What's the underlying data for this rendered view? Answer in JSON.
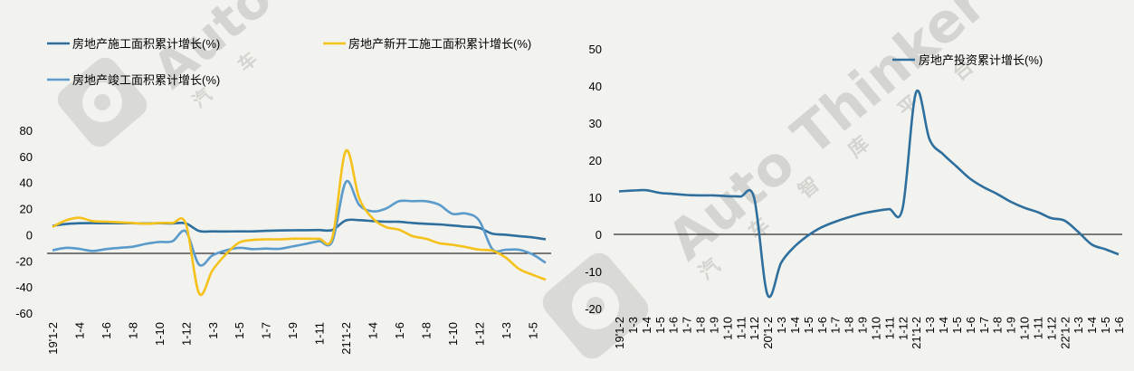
{
  "watermark": {
    "text": "Auto Thinker",
    "chars": [
      "汽",
      "车",
      "智",
      "库",
      "平",
      "台"
    ]
  },
  "chart_data": [
    {
      "type": "line",
      "title": "",
      "xlabel": "",
      "ylabel": "",
      "ylim": [
        -60,
        80
      ],
      "yticks": [
        80,
        60,
        40,
        20,
        0,
        -20,
        -40,
        -60
      ],
      "categories": [
        "19'1-2",
        "1-3",
        "1-4",
        "1-5",
        "1-6",
        "1-7",
        "1-8",
        "1-9",
        "1-10",
        "1-11",
        "1-12",
        "20'1-2",
        "1-3",
        "1-4",
        "1-5",
        "1-6",
        "1-7",
        "1-8",
        "1-9",
        "1-10",
        "1-11",
        "1-12",
        "21'1-2",
        "1-3",
        "1-4",
        "1-5",
        "1-6",
        "1-7",
        "1-8",
        "1-9",
        "1-10",
        "1-11",
        "1-12",
        "22'1-2",
        "1-3",
        "1-4",
        "1-5",
        "1-6"
      ],
      "tick_labels": [
        "19'1-2",
        "1-4",
        "1-6",
        "1-8",
        "1-10",
        "1-12",
        "1-3",
        "1-5",
        "1-7",
        "1-9",
        "1-11",
        "21'1-2",
        "1-4",
        "1-6",
        "1-8",
        "1-10",
        "1-12",
        "1-3",
        "1-5"
      ],
      "tick_label_index": [
        0,
        2,
        4,
        6,
        8,
        10,
        12,
        14,
        16,
        18,
        20,
        22,
        24,
        26,
        28,
        30,
        32,
        34,
        36
      ],
      "grid": false,
      "legend_placement": "top",
      "series": [
        {
          "name": "房地产施工面积累计增长(%)",
          "color": "#2e6f9e",
          "values": [
            6.8,
            8.2,
            8.8,
            8.9,
            8.8,
            8.8,
            8.8,
            8.7,
            8.8,
            8.7,
            8.7,
            2.9,
            2.6,
            2.5,
            2.6,
            2.6,
            3.0,
            3.3,
            3.4,
            3.5,
            3.6,
            3.7,
            11.0,
            11.2,
            10.5,
            10.0,
            9.9,
            9.0,
            8.4,
            7.9,
            7.1,
            6.2,
            5.2,
            0.8,
            0.0,
            -1.0,
            -2.0,
            -3.5
          ]
        },
        {
          "name": "房地产新开工施工面积累计增长(%)",
          "color": "#f5c11b",
          "values": [
            6.0,
            11.0,
            13.0,
            10.5,
            10.0,
            9.5,
            9.0,
            8.5,
            9.0,
            9.0,
            8.5,
            -44.9,
            -27.2,
            -15.0,
            -6.0,
            -4.0,
            -3.5,
            -3.5,
            -3.0,
            -3.0,
            -3.0,
            -2.0,
            64.3,
            28.2,
            12.8,
            6.0,
            3.8,
            -1.0,
            -3.0,
            -6.4,
            -7.7,
            -9.4,
            -11.4,
            -12.2,
            -17.5,
            -26.2,
            -30.6,
            -34.4
          ]
        },
        {
          "name": "房地产竣工面积累计增长(%)",
          "color": "#5b9bcc",
          "values": [
            -11.9,
            -10.0,
            -10.8,
            -12.4,
            -11.0,
            -10.0,
            -9.2,
            -7.0,
            -5.5,
            -5.0,
            2.6,
            -22.9,
            -15.8,
            -12.0,
            -10.0,
            -11.0,
            -10.6,
            -10.8,
            -9.0,
            -7.0,
            -5.0,
            -4.9,
            40.4,
            22.9,
            18.0,
            20.0,
            25.7,
            25.7,
            25.7,
            23.0,
            16.0,
            16.3,
            11.0,
            -11.1,
            -11.5,
            -11.5,
            -15.0,
            -21.5
          ]
        }
      ]
    },
    {
      "type": "line",
      "title": "",
      "xlabel": "",
      "ylabel": "",
      "ylim": [
        -20,
        50
      ],
      "yticks": [
        50,
        40,
        30,
        20,
        10,
        0,
        -10,
        -20
      ],
      "categories": [
        "19'1-2",
        "1-3",
        "1-4",
        "1-5",
        "1-6",
        "1-7",
        "1-8",
        "1-9",
        "1-10",
        "1-11",
        "1-12",
        "20'1-2",
        "1-3",
        "1-4",
        "1-5",
        "1-6",
        "1-7",
        "1-8",
        "1-9",
        "1-10",
        "1-11",
        "1-12",
        "21'1-2",
        "1-3",
        "1-4",
        "1-5",
        "1-6",
        "1-7",
        "1-8",
        "1-9",
        "1-10",
        "1-11",
        "1-12",
        "22'1-2",
        "1-3",
        "1-4",
        "1-5",
        "1-6"
      ],
      "tick_labels": [
        "19'1-2",
        "1-3",
        "1-4",
        "1-5",
        "1-6",
        "1-7",
        "1-8",
        "1-9",
        "1-10",
        "1-11",
        "1-12",
        "20'1-2",
        "1-3",
        "1-4",
        "1-5",
        "1-6",
        "1-7",
        "1-8",
        "1-9",
        "1-10",
        "1-11",
        "1-12",
        "21'1-2",
        "1-3",
        "1-4",
        "1-5",
        "1-6",
        "1-7",
        "1-8",
        "1-9",
        "1-10",
        "1-11",
        "1-12",
        "22'1-2",
        "1-3",
        "1-4",
        "1-5",
        "1-6"
      ],
      "grid": false,
      "legend_placement": "top-right",
      "series": [
        {
          "name": "房地产投资累计增长(%)",
          "color": "#2e6f9e",
          "values": [
            11.6,
            11.8,
            11.9,
            11.2,
            10.9,
            10.6,
            10.5,
            10.5,
            10.3,
            10.2,
            9.9,
            -16.3,
            -7.7,
            -3.3,
            -0.3,
            1.9,
            3.4,
            4.6,
            5.6,
            6.3,
            6.8,
            7.0,
            38.3,
            25.6,
            21.6,
            18.3,
            15.0,
            12.7,
            10.9,
            8.8,
            7.2,
            6.0,
            4.4,
            3.7,
            0.7,
            -2.7,
            -4.0,
            -5.4
          ]
        }
      ]
    }
  ]
}
